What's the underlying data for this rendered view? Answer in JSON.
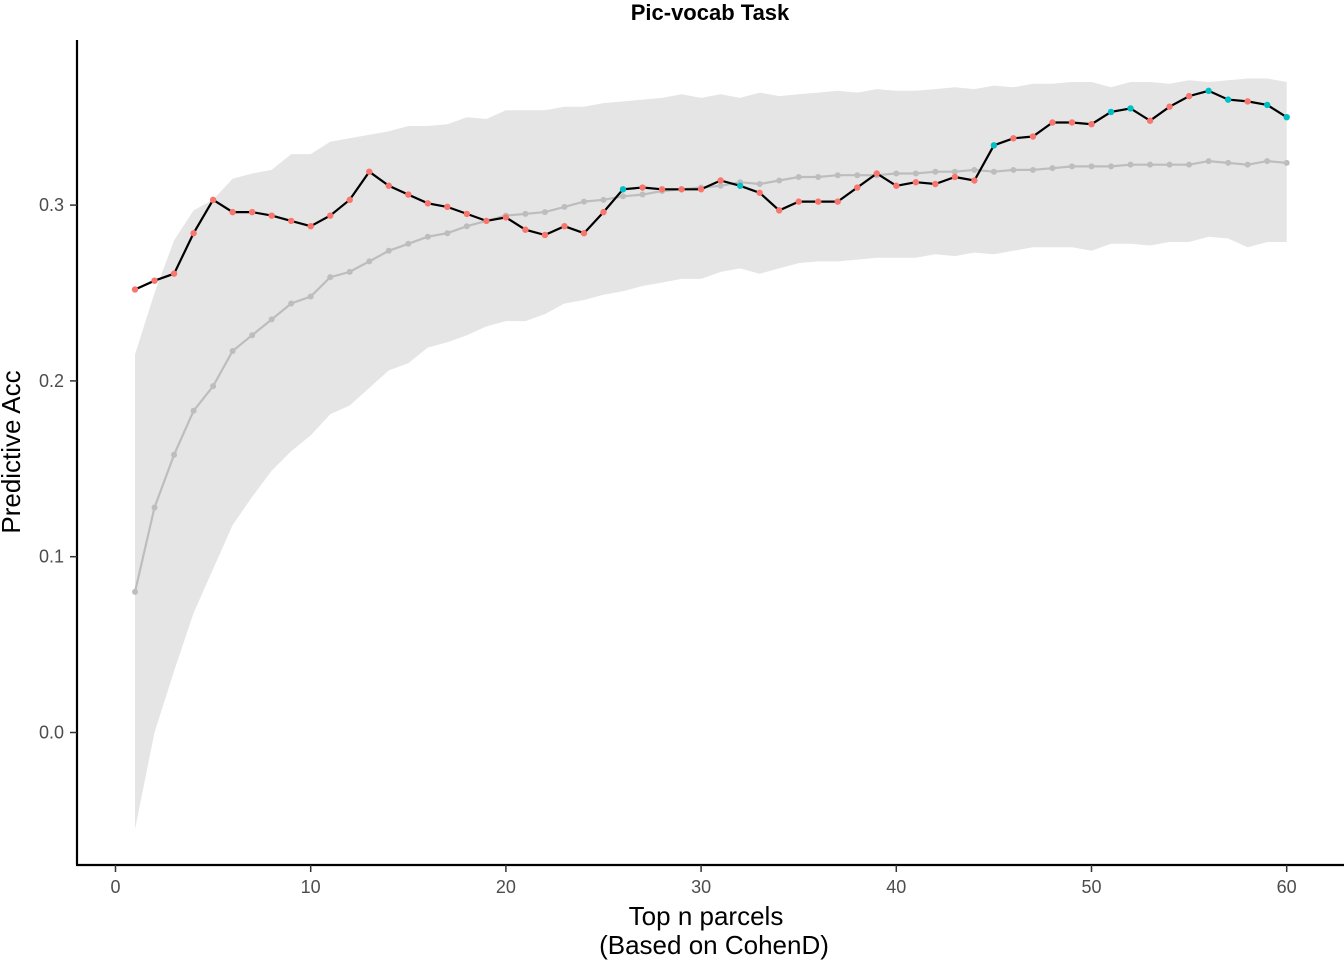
{
  "chart_data": {
    "type": "line",
    "title": "Pic-vocab Task",
    "xlabel": "Top n parcels",
    "xlabel_line2": "(Based on CohenD)",
    "ylabel": "Predictive Acc",
    "xlim": [
      -1,
      62
    ],
    "ylim": [
      -0.075,
      0.375
    ],
    "x_ticks": [
      0,
      10,
      20,
      30,
      40,
      50,
      60
    ],
    "y_ticks": [
      0.0,
      0.1,
      0.2,
      0.3
    ],
    "y_tick_labels": [
      "0.0",
      "0.1",
      "0.2",
      "0.3"
    ],
    "grid": false,
    "legend": "none",
    "colors": {
      "observed_line": "#000000",
      "point_significant": "#F8766D",
      "point_not_significant": "#00BFC4",
      "null_mean": "#bdbdbd",
      "null_band": "#e5e5e5"
    },
    "x": [
      1,
      2,
      3,
      4,
      5,
      6,
      7,
      8,
      9,
      10,
      11,
      12,
      13,
      14,
      15,
      16,
      17,
      18,
      19,
      20,
      21,
      22,
      23,
      24,
      25,
      26,
      27,
      28,
      29,
      30,
      31,
      32,
      33,
      34,
      35,
      36,
      37,
      38,
      39,
      40,
      41,
      42,
      43,
      44,
      45,
      46,
      47,
      48,
      49,
      50,
      51,
      52,
      53,
      54,
      55,
      56,
      57,
      58,
      59,
      60
    ],
    "series": [
      {
        "role": "observed",
        "values": [
          0.252,
          0.257,
          0.261,
          0.284,
          0.303,
          0.296,
          0.296,
          0.294,
          0.291,
          0.288,
          0.294,
          0.303,
          0.319,
          0.311,
          0.306,
          0.301,
          0.299,
          0.295,
          0.291,
          0.293,
          0.286,
          0.283,
          0.288,
          0.284,
          0.296,
          0.309,
          0.31,
          0.309,
          0.309,
          0.309,
          0.314,
          0.311,
          0.307,
          0.297,
          0.302,
          0.302,
          0.302,
          0.31,
          0.318,
          0.311,
          0.313,
          0.312,
          0.316,
          0.314,
          0.334,
          0.338,
          0.339,
          0.347,
          0.347,
          0.346,
          0.353,
          0.355,
          0.348,
          0.356,
          0.362,
          0.365,
          0.36,
          0.359,
          0.357,
          0.35
        ],
        "point_class": [
          "s",
          "s",
          "s",
          "s",
          "s",
          "s",
          "s",
          "s",
          "s",
          "s",
          "s",
          "s",
          "s",
          "s",
          "s",
          "s",
          "s",
          "s",
          "s",
          "s",
          "s",
          "s",
          "s",
          "s",
          "s",
          "n",
          "s",
          "s",
          "s",
          "s",
          "s",
          "n",
          "s",
          "s",
          "s",
          "s",
          "s",
          "s",
          "s",
          "s",
          "s",
          "s",
          "s",
          "s",
          "n",
          "s",
          "s",
          "s",
          "s",
          "s",
          "n",
          "n",
          "s",
          "s",
          "s",
          "n",
          "n",
          "s",
          "n",
          "n"
        ]
      },
      {
        "role": "null_mean",
        "values": [
          0.08,
          0.128,
          0.158,
          0.183,
          0.197,
          0.217,
          0.226,
          0.235,
          0.244,
          0.248,
          0.259,
          0.262,
          0.268,
          0.274,
          0.278,
          0.282,
          0.284,
          0.288,
          0.291,
          0.294,
          0.295,
          0.296,
          0.299,
          0.302,
          0.303,
          0.305,
          0.306,
          0.308,
          0.309,
          0.31,
          0.311,
          0.313,
          0.312,
          0.314,
          0.316,
          0.316,
          0.317,
          0.317,
          0.317,
          0.318,
          0.318,
          0.319,
          0.319,
          0.32,
          0.319,
          0.32,
          0.32,
          0.321,
          0.322,
          0.322,
          0.322,
          0.323,
          0.323,
          0.323,
          0.323,
          0.325,
          0.324,
          0.323,
          0.325,
          0.324
        ]
      },
      {
        "role": "null_upper",
        "values": [
          0.215,
          0.25,
          0.28,
          0.297,
          0.303,
          0.315,
          0.318,
          0.32,
          0.329,
          0.329,
          0.336,
          0.338,
          0.34,
          0.342,
          0.345,
          0.345,
          0.346,
          0.35,
          0.349,
          0.354,
          0.354,
          0.354,
          0.356,
          0.356,
          0.358,
          0.359,
          0.36,
          0.361,
          0.363,
          0.361,
          0.363,
          0.361,
          0.364,
          0.362,
          0.363,
          0.364,
          0.365,
          0.364,
          0.366,
          0.365,
          0.365,
          0.366,
          0.367,
          0.366,
          0.368,
          0.367,
          0.369,
          0.369,
          0.37,
          0.37,
          0.367,
          0.37,
          0.37,
          0.369,
          0.371,
          0.37,
          0.371,
          0.372,
          0.372,
          0.37
        ]
      },
      {
        "role": "null_lower",
        "values": [
          -0.055,
          0.0,
          0.035,
          0.068,
          0.093,
          0.118,
          0.134,
          0.149,
          0.16,
          0.169,
          0.181,
          0.186,
          0.196,
          0.206,
          0.21,
          0.219,
          0.222,
          0.226,
          0.231,
          0.234,
          0.234,
          0.238,
          0.244,
          0.246,
          0.249,
          0.251,
          0.254,
          0.256,
          0.258,
          0.258,
          0.262,
          0.264,
          0.261,
          0.264,
          0.267,
          0.268,
          0.268,
          0.269,
          0.27,
          0.27,
          0.27,
          0.272,
          0.271,
          0.273,
          0.272,
          0.274,
          0.276,
          0.276,
          0.276,
          0.274,
          0.278,
          0.278,
          0.277,
          0.279,
          0.279,
          0.282,
          0.281,
          0.276,
          0.279,
          0.279
        ]
      }
    ]
  }
}
